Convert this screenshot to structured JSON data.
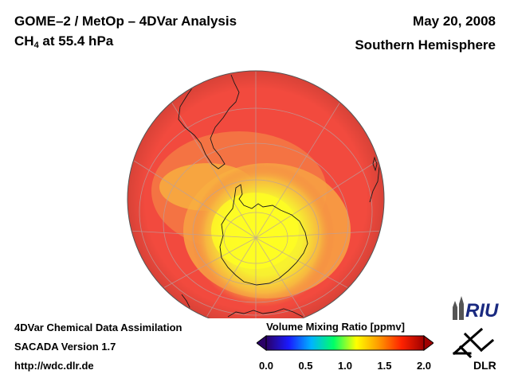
{
  "header": {
    "title_line1": "GOME–2 / MetOp – 4DVar Analysis",
    "species_main": "CH",
    "species_sub": "4",
    "species_rest": " at 55.4 hPa",
    "date": "May 20, 2008",
    "hemisphere": "Southern Hemisphere"
  },
  "footer": {
    "line1": "4DVar Chemical Data Assimilation",
    "line2": "SACADA Version 1.7",
    "line3": "http://wdc.dlr.de"
  },
  "colorbar": {
    "title": "Volume Mixing Ratio [ppmv]",
    "ticks": [
      "0.0",
      "0.5",
      "1.0",
      "1.5",
      "2.0"
    ],
    "min": 0.0,
    "max": 2.0,
    "colors": [
      "#2a0066",
      "#1a1aff",
      "#00b3ff",
      "#00ff66",
      "#ffff00",
      "#ff9900",
      "#ff2200",
      "#a00000"
    ]
  },
  "map": {
    "projection": "orthographic",
    "center": "South Pole",
    "field_colors": {
      "background": "#f25040",
      "low": "#ffee30",
      "mid": "#f7b040"
    }
  },
  "logos": {
    "riu": "RIU",
    "dlr": "DLR"
  }
}
